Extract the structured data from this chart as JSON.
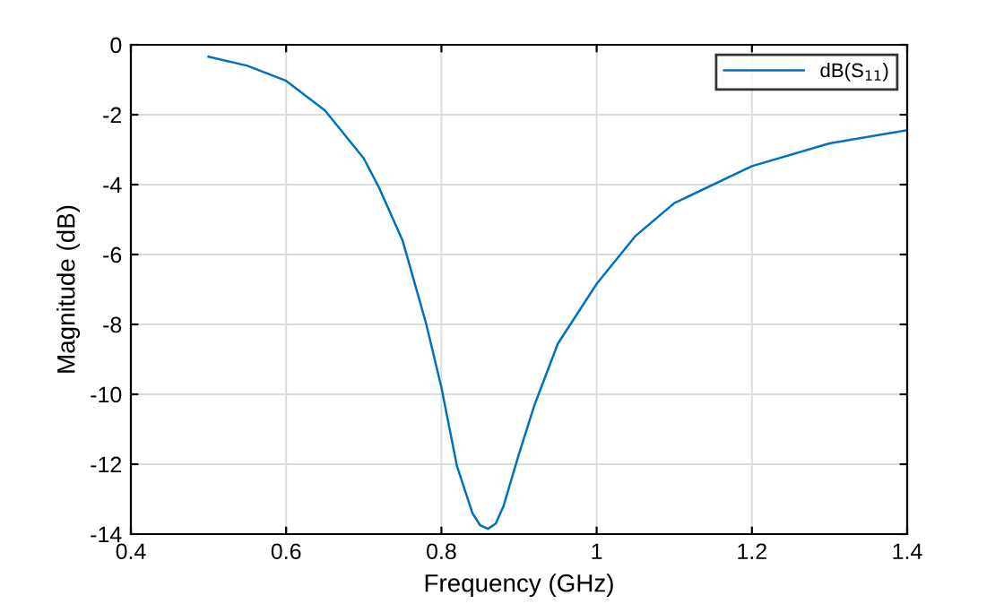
{
  "chart_data": {
    "type": "line",
    "xlabel": "Frequency (GHz)",
    "ylabel": "Magnitude (dB)",
    "xlim": [
      0.4,
      1.4
    ],
    "xticks": [
      0.4,
      0.6,
      0.8,
      1,
      1.2,
      1.4
    ],
    "ylim": [
      -14,
      0
    ],
    "yticks": [
      -14,
      -12,
      -10,
      -8,
      -6,
      -4,
      -2,
      0
    ],
    "grid": true,
    "legend": "top right",
    "marker": "none",
    "line_style": "solid",
    "series": [
      {
        "name": "dB(S$_{11}$)",
        "color": "#0072bd",
        "x": [
          0.5,
          0.55,
          0.6,
          0.65,
          0.7,
          0.72,
          0.75,
          0.78,
          0.8,
          0.82,
          0.84,
          0.85,
          0.86,
          0.87,
          0.88,
          0.9,
          0.92,
          0.95,
          1.0,
          1.05,
          1.1,
          1.2,
          1.3,
          1.4
        ],
        "values": [
          -0.34,
          -0.6,
          -1.03,
          -1.88,
          -3.25,
          -4.1,
          -5.6,
          -7.95,
          -9.8,
          -12.05,
          -13.4,
          -13.75,
          -13.85,
          -13.7,
          -13.2,
          -11.7,
          -10.3,
          -8.55,
          -6.84,
          -5.47,
          -4.53,
          -3.47,
          -2.82,
          -2.44
        ]
      }
    ]
  }
}
